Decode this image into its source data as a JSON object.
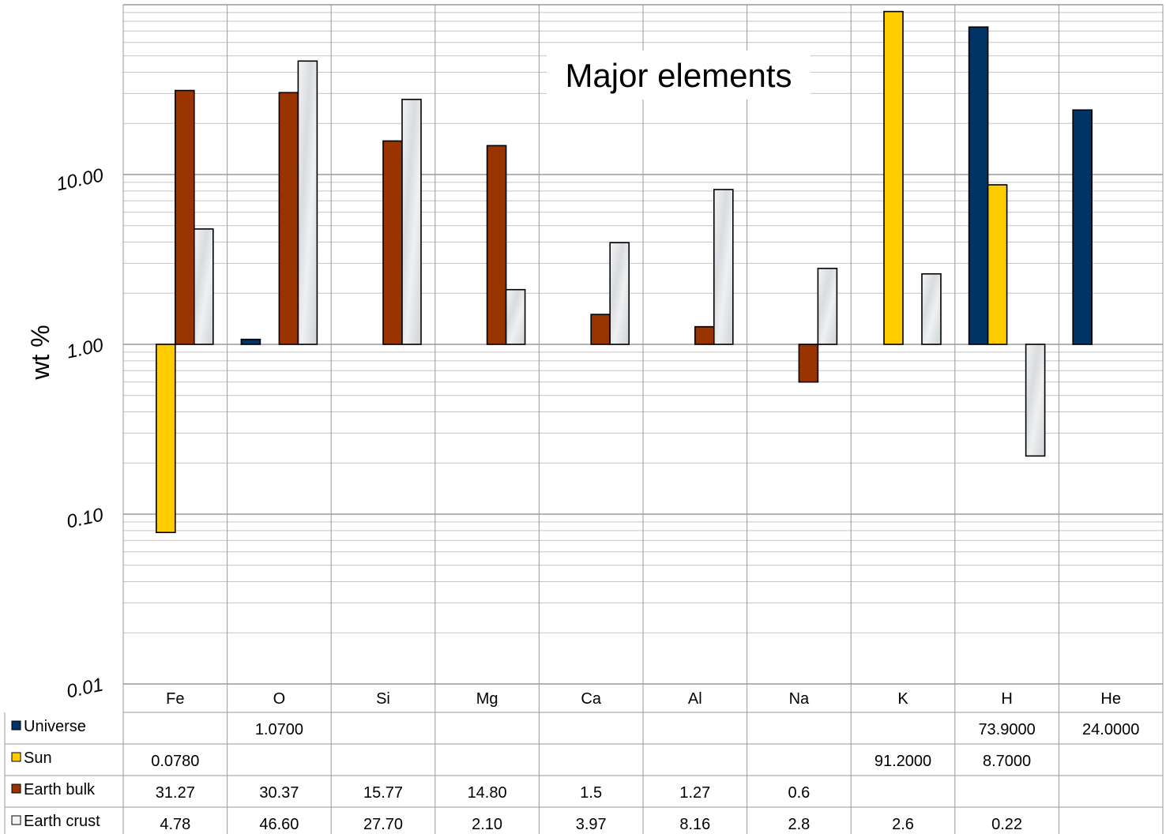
{
  "chart_data": {
    "type": "bar",
    "title": "Major elements",
    "xlabel": "",
    "ylabel": "wt %",
    "y_scale": "log",
    "ylim": [
      0.01,
      100
    ],
    "baseline": 1,
    "y_ticks": [
      "10.00",
      "1.00",
      "0.10",
      "0.01"
    ],
    "grid": "horizontal and vertical",
    "legend_placement": "data table",
    "categories": [
      "Fe",
      "O",
      "Si",
      "Mg",
      "Ca",
      "Al",
      "Na",
      "K",
      "H",
      "He"
    ],
    "series": [
      {
        "name": "Universe",
        "color": "#003366",
        "values": [
          null,
          1.07,
          null,
          null,
          null,
          null,
          null,
          null,
          73.9,
          24.0
        ],
        "labels": [
          "",
          "1.0700",
          "",
          "",
          "",
          "",
          "",
          "",
          "73.9000",
          "24.0000"
        ]
      },
      {
        "name": "Sun",
        "color": "#FFCC00",
        "values": [
          0.078,
          null,
          null,
          null,
          null,
          null,
          null,
          91.2,
          8.7,
          null
        ],
        "labels": [
          "0.0780",
          "",
          "",
          "",
          "",
          "",
          "",
          "91.2000",
          "8.7000",
          ""
        ]
      },
      {
        "name": "Earth bulk",
        "color": "#993300",
        "values": [
          31.27,
          30.37,
          15.77,
          14.8,
          1.5,
          1.27,
          0.6,
          null,
          null,
          null
        ],
        "labels": [
          "31.27",
          "30.37",
          "15.77",
          "14.80",
          "1.5",
          "1.27",
          "0.6",
          "",
          "",
          ""
        ]
      },
      {
        "name": "Earth crust",
        "color": "#E4E6E8",
        "values": [
          4.78,
          46.6,
          27.7,
          2.1,
          3.97,
          8.16,
          2.8,
          2.6,
          0.22,
          null
        ],
        "labels": [
          "4.78",
          "46.60",
          "27.70",
          "2.10",
          "3.97",
          "8.16",
          "2.8",
          "2.6",
          "0.22",
          ""
        ]
      }
    ]
  }
}
